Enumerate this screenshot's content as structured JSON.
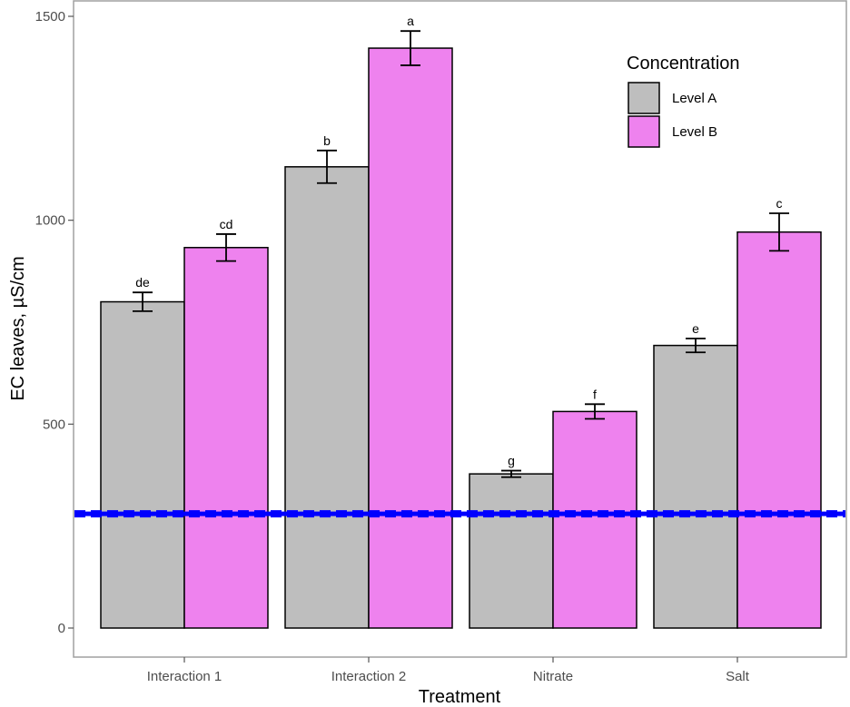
{
  "chart_data": {
    "type": "bar",
    "title": "",
    "xlabel": "Treatment",
    "ylabel": "EC leaves, µS/cm",
    "ylim": [
      -50,
      1530
    ],
    "yticks": [
      0,
      500,
      1000,
      1500
    ],
    "grid": false,
    "categories": [
      "Interaction 1",
      "Interaction 2",
      "Nitrate",
      "Salt"
    ],
    "legend": {
      "title": "Concentration",
      "position": "top-right"
    },
    "series": [
      {
        "name": "Level A",
        "color": "#bebebe",
        "values": [
          800,
          1131,
          378,
          693
        ],
        "errors": [
          23,
          40,
          8,
          17
        ],
        "labels": [
          "de",
          "b",
          "g",
          "e"
        ]
      },
      {
        "name": "Level B",
        "color": "#ee82ee",
        "values": [
          933,
          1422,
          531,
          971
        ],
        "errors": [
          33,
          42,
          18,
          46
        ],
        "labels": [
          "cd",
          "a",
          "f",
          "c"
        ]
      }
    ],
    "reference_line": {
      "value": 280,
      "color": "#0000ff",
      "style": "dashed"
    }
  }
}
